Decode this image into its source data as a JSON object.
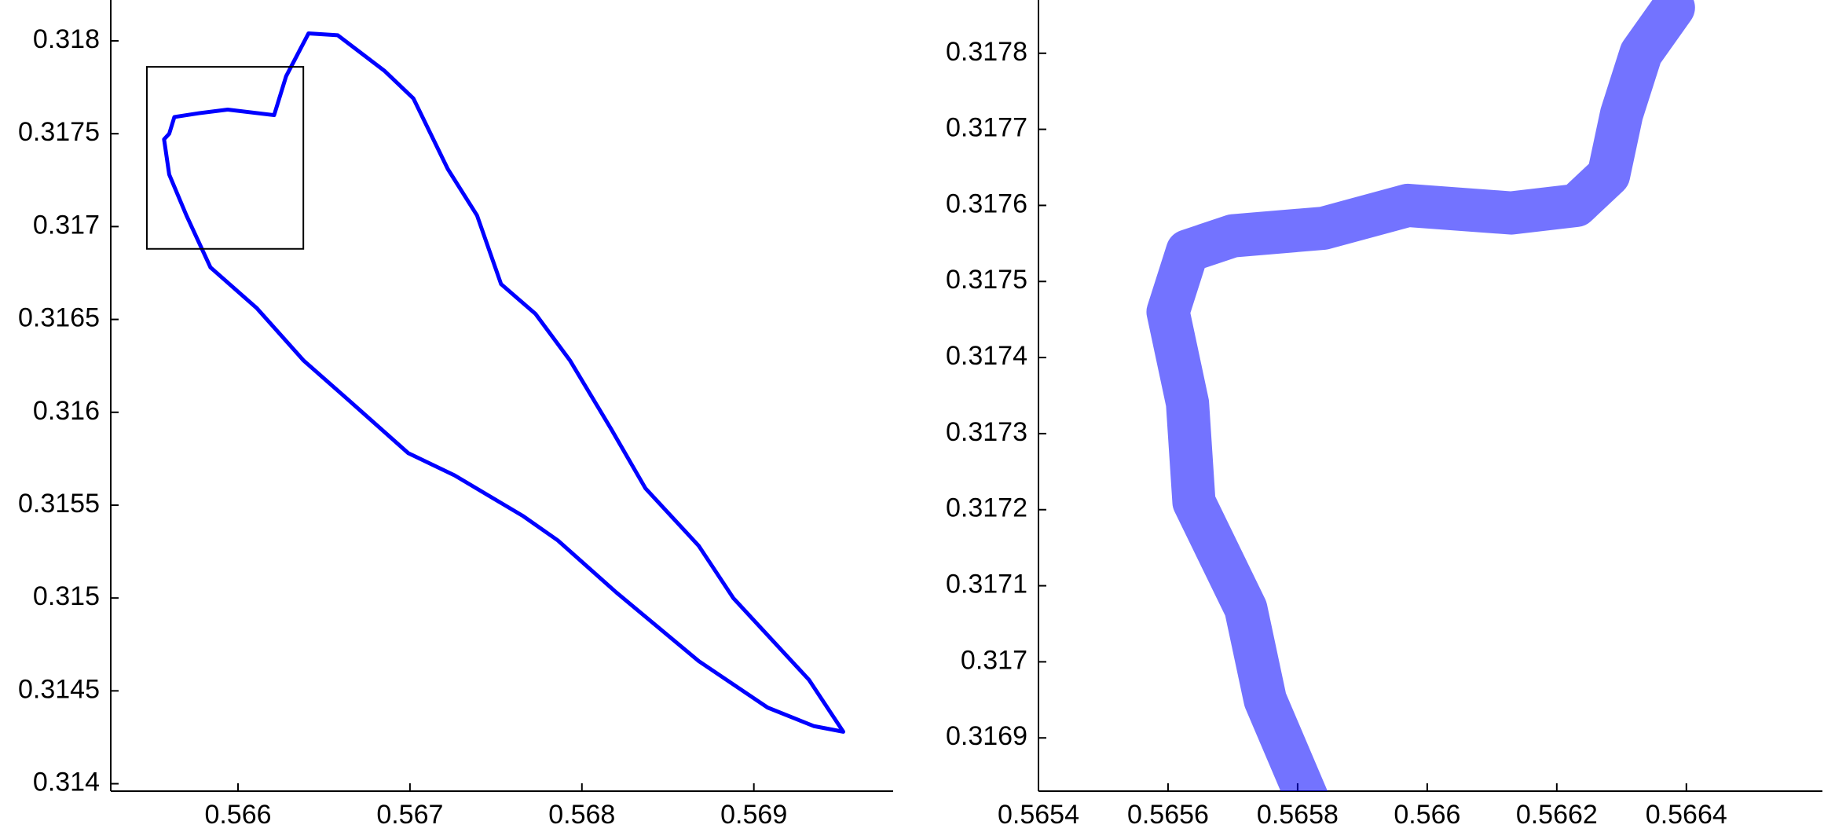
{
  "chart_data": [
    {
      "type": "line",
      "color": "#0000ff",
      "xlim": [
        0.56526,
        0.56981
      ],
      "ylim": [
        0.31396,
        0.31822
      ],
      "xticks": [
        0.566,
        0.567,
        0.568,
        0.569
      ],
      "yticks": [
        0.314,
        0.3145,
        0.315,
        0.3155,
        0.316,
        0.3165,
        0.317,
        0.3175,
        0.318
      ],
      "x": [
        0.5656,
        0.56563,
        0.56577,
        0.56594,
        0.56621,
        0.56628,
        0.56641,
        0.56658,
        0.56685,
        0.56702,
        0.56722,
        0.56739,
        0.56753,
        0.56773,
        0.56793,
        0.56817,
        0.56837,
        0.56868,
        0.56888,
        0.56932,
        0.56952,
        0.56935,
        0.56908,
        0.56868,
        0.5682,
        0.56786,
        0.56766,
        0.56726,
        0.56699,
        0.56665,
        0.56638,
        0.56611,
        0.56584,
        0.5657,
        0.5656,
        0.56557,
        0.5656
      ],
      "values": [
        0.3175,
        0.31759,
        0.31761,
        0.31763,
        0.3176,
        0.31781,
        0.31804,
        0.31803,
        0.31784,
        0.31769,
        0.31731,
        0.31706,
        0.31669,
        0.31653,
        0.31628,
        0.31591,
        0.31559,
        0.31528,
        0.315,
        0.31456,
        0.31428,
        0.31431,
        0.31441,
        0.31466,
        0.31503,
        0.31531,
        0.31544,
        0.31566,
        0.31578,
        0.31606,
        0.31628,
        0.31656,
        0.31678,
        0.31706,
        0.31728,
        0.31747,
        0.3175
      ],
      "zoom_box": {
        "xlim": [
          0.56547,
          0.56638
        ],
        "ylim": [
          0.31688,
          0.31786
        ]
      }
    },
    {
      "type": "line",
      "color": "#0000ff",
      "xlim": [
        0.5654,
        0.56661
      ],
      "ylim": [
        0.31683,
        0.31787
      ],
      "xticks": [
        0.5654,
        0.5656,
        0.5658,
        0.566,
        0.5662,
        0.5664
      ],
      "yticks": [
        0.3169,
        0.317,
        0.3171,
        0.3172,
        0.3173,
        0.3174,
        0.3175,
        0.3176,
        0.3177,
        0.3178
      ],
      "x": [
        0.56582,
        0.56575,
        0.56572,
        0.56564,
        0.56563,
        0.5656,
        0.56563,
        0.5657,
        0.56584,
        0.56597,
        0.56613,
        0.56623,
        0.56628,
        0.5663,
        0.56633,
        0.56638
      ],
      "values": [
        0.31681,
        0.31695,
        0.31707,
        0.31721,
        0.31734,
        0.31746,
        0.31754,
        0.31756,
        0.31757,
        0.3176,
        0.31759,
        0.3176,
        0.31764,
        0.31772,
        0.3178,
        0.31786
      ]
    }
  ]
}
